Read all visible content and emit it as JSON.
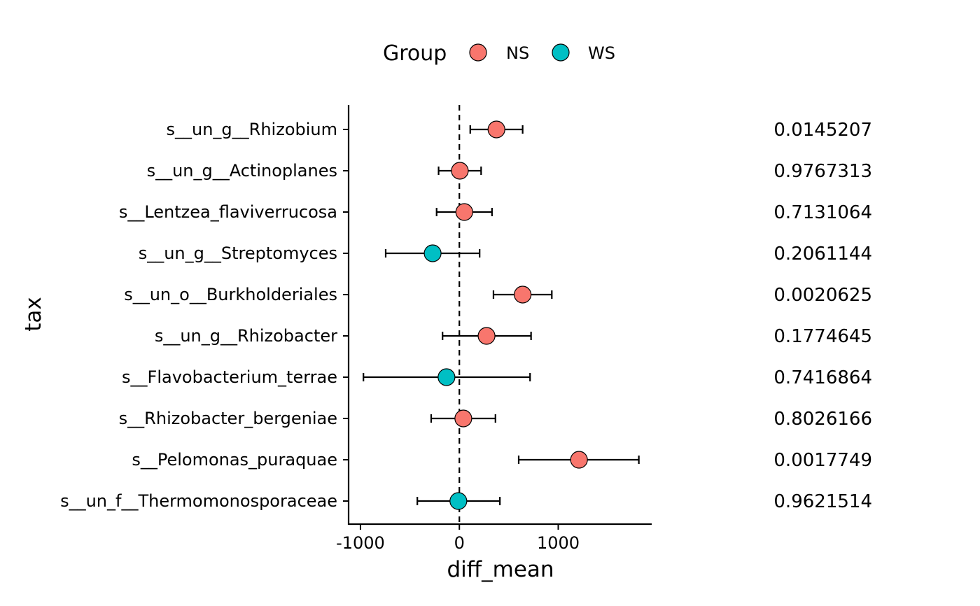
{
  "chart_data": {
    "type": "forest",
    "title": "",
    "xlabel": "diff_mean",
    "ylabel": "tax",
    "xlim": [
      -1120,
      1945
    ],
    "xticks": [
      -1000,
      0,
      1000
    ],
    "xtick_labels": [
      "-1000",
      "0",
      "1000"
    ],
    "reference_line": 0,
    "legend": {
      "title": "Group",
      "position": "top",
      "entries": [
        {
          "name": "NS",
          "color": "#F8766D"
        },
        {
          "name": "WS",
          "color": "#00BFC4"
        }
      ]
    },
    "rows": [
      {
        "tax": "s__un_g__Rhizobium",
        "diff_mean": 375,
        "lower": 110,
        "upper": 640,
        "group": "NS",
        "p_value": "0.0145207"
      },
      {
        "tax": "s__un_g__Actinoplanes",
        "diff_mean": 5,
        "lower": -210,
        "upper": 220,
        "group": "NS",
        "p_value": "0.9767313"
      },
      {
        "tax": "s__Lentzea_flaviverrucosa",
        "diff_mean": 50,
        "lower": -230,
        "upper": 330,
        "group": "NS",
        "p_value": "0.7131064"
      },
      {
        "tax": "s__un_g__Streptomyces",
        "diff_mean": -270,
        "lower": -745,
        "upper": 205,
        "group": "WS",
        "p_value": "0.2061144"
      },
      {
        "tax": "s__un_o__Burkholderiales",
        "diff_mean": 640,
        "lower": 345,
        "upper": 935,
        "group": "NS",
        "p_value": "0.0020625"
      },
      {
        "tax": "s__un_g__Rhizobacter",
        "diff_mean": 275,
        "lower": -170,
        "upper": 725,
        "group": "NS",
        "p_value": "0.1774645"
      },
      {
        "tax": "s__Flavobacterium_terrae",
        "diff_mean": -130,
        "lower": -970,
        "upper": 715,
        "group": "WS",
        "p_value": "0.7416864"
      },
      {
        "tax": "s__Rhizobacter_bergeniae",
        "diff_mean": 40,
        "lower": -285,
        "upper": 365,
        "group": "NS",
        "p_value": "0.8026166"
      },
      {
        "tax": "s__Pelomonas_puraquae",
        "diff_mean": 1210,
        "lower": 600,
        "upper": 1815,
        "group": "NS",
        "p_value": "0.0017749"
      },
      {
        "tax": "s__un_f__Thermomonosporaceae",
        "diff_mean": -10,
        "lower": -425,
        "upper": 410,
        "group": "WS",
        "p_value": "0.9621514"
      }
    ]
  }
}
